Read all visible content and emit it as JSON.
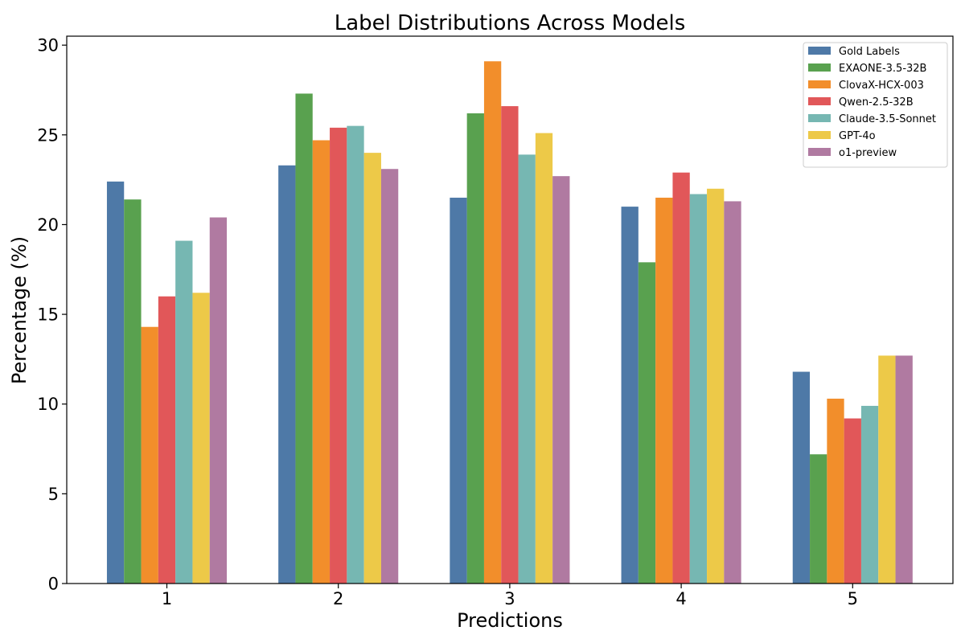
{
  "chart_data": {
    "type": "bar",
    "title": "Label Distributions Across Models",
    "xlabel": "Predictions",
    "ylabel": "Percentage (%)",
    "categories": [
      "1",
      "2",
      "3",
      "4",
      "5"
    ],
    "ylim": [
      0,
      30.5
    ],
    "yticks": [
      0,
      5,
      10,
      15,
      20,
      25,
      30
    ],
    "grid": false,
    "legend_position": "top-right",
    "series": [
      {
        "name": "Gold Labels",
        "color": "#4e79a7",
        "values": [
          22.4,
          23.3,
          21.5,
          21.0,
          11.8
        ]
      },
      {
        "name": "EXAONE-3.5-32B",
        "color": "#59a14f",
        "values": [
          21.4,
          27.3,
          26.2,
          17.9,
          7.2
        ]
      },
      {
        "name": "ClovaX-HCX-003",
        "color": "#f28e2b",
        "values": [
          14.3,
          24.7,
          29.1,
          21.5,
          10.3
        ]
      },
      {
        "name": "Qwen-2.5-32B",
        "color": "#e15759",
        "values": [
          16.0,
          25.4,
          26.6,
          22.9,
          9.2
        ]
      },
      {
        "name": "Claude-3.5-Sonnet",
        "color": "#76b7b2",
        "values": [
          19.1,
          25.5,
          23.9,
          21.7,
          9.9
        ]
      },
      {
        "name": "GPT-4o",
        "color": "#edc948",
        "values": [
          16.2,
          24.0,
          25.1,
          22.0,
          12.7
        ]
      },
      {
        "name": "o1-preview",
        "color": "#b07aa1",
        "values": [
          20.4,
          23.1,
          22.7,
          21.3,
          12.7
        ]
      }
    ]
  }
}
